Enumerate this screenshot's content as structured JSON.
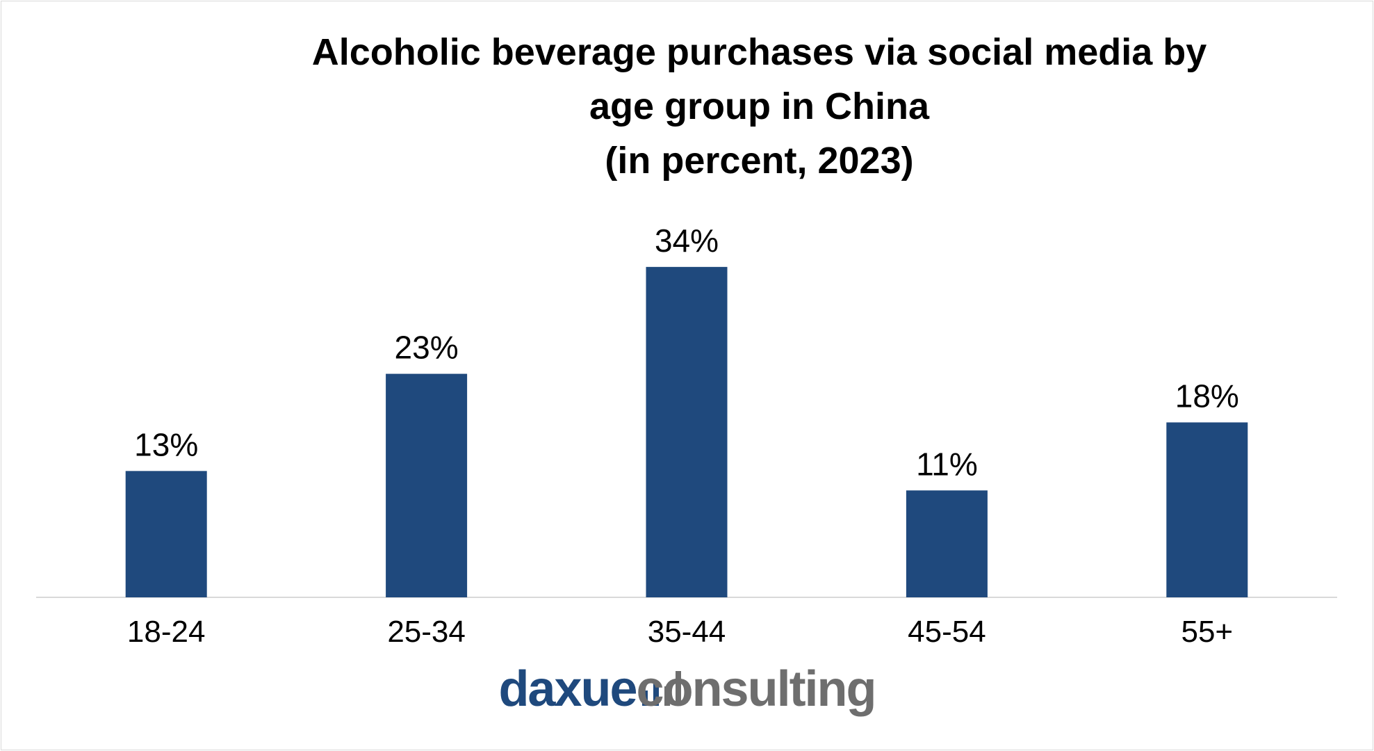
{
  "chart_data": {
    "type": "bar",
    "title_lines": [
      "Alcoholic beverage purchases via social media by",
      "age group in China",
      "(in percent, 2023)"
    ],
    "categories": [
      "18-24",
      "25-34",
      "35-44",
      "45-54",
      "55+"
    ],
    "values": [
      13,
      23,
      34,
      11,
      18
    ],
    "value_labels": [
      "13%",
      "23%",
      "34%",
      "11%",
      "18%"
    ],
    "xlabel": "",
    "ylabel": "",
    "ylim": [
      0,
      40
    ],
    "grid": false,
    "legend": "none",
    "bar_color": "#1f497d"
  },
  "branding": {
    "logo_text_primary": "daxue",
    "logo_text_secondary": "consulting",
    "primary_color": "#1f497d",
    "secondary_color": "#6e6e6e",
    "icon": "bar-chart-icon"
  }
}
